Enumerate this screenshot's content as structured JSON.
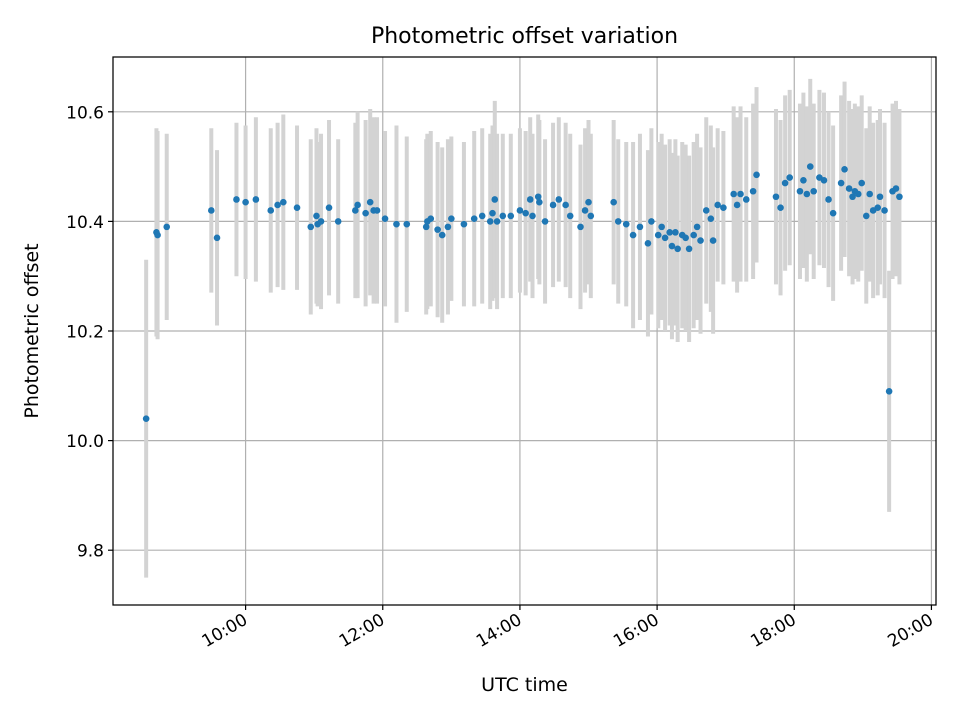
{
  "chart_data": {
    "type": "scatter",
    "title": "Photometric offset variation",
    "xlabel": "UTC time",
    "ylabel": "Photometric offset",
    "xlim": [
      "08:04",
      "20:04"
    ],
    "ylim": [
      9.7,
      10.7
    ],
    "x_ticks": [
      "10:00",
      "12:00",
      "14:00",
      "16:00",
      "18:00",
      "20:00"
    ],
    "y_ticks": [
      9.8,
      10.0,
      10.2,
      10.4,
      10.6
    ],
    "y_tick_labels": [
      "9.8",
      "10.0",
      "10.2",
      "10.4",
      "10.6"
    ],
    "grid": true,
    "colors": {
      "points": "#1f77b4",
      "error_bars": "#d3d3d3",
      "grid": "#b0b0b0"
    },
    "series": [
      {
        "x": [
          "08:33",
          "08:42",
          "08:43",
          "08:51",
          "09:30",
          "09:35",
          "09:52",
          "10:00",
          "10:09",
          "10:22",
          "10:28",
          "10:33",
          "10:45",
          "10:57",
          "11:02",
          "11:03",
          "11:06",
          "11:13",
          "11:21",
          "11:36",
          "11:38",
          "11:45",
          "11:49",
          "11:52",
          "11:55",
          "12:02",
          "12:12",
          "12:21",
          "12:38",
          "12:39",
          "12:42",
          "12:48",
          "12:52",
          "12:57",
          "13:00",
          "13:11",
          "13:20",
          "13:27",
          "13:34",
          "13:36",
          "13:38",
          "13:40",
          "13:45",
          "13:52",
          "14:00",
          "14:05",
          "14:09",
          "14:11",
          "14:16",
          "14:17",
          "14:22",
          "14:29",
          "14:34",
          "14:40",
          "14:44",
          "14:53",
          "14:57",
          "15:00",
          "15:02",
          "15:22",
          "15:26",
          "15:33",
          "15:39",
          "15:45",
          "15:52",
          "15:55",
          "16:01",
          "16:04",
          "16:07",
          "16:11",
          "16:13",
          "16:16",
          "16:18",
          "16:22",
          "16:25",
          "16:28",
          "16:32",
          "16:35",
          "16:38",
          "16:43",
          "16:47",
          "16:49",
          "16:53",
          "16:58",
          "17:07",
          "17:10",
          "17:13",
          "17:18",
          "17:24",
          "17:27",
          "17:44",
          "17:48",
          "17:52",
          "17:56",
          "18:05",
          "18:08",
          "18:11",
          "18:14",
          "18:17",
          "18:22",
          "18:26",
          "18:30",
          "18:34",
          "18:41",
          "18:44",
          "18:48",
          "18:51",
          "18:53",
          "18:56",
          "18:59",
          "19:03",
          "19:06",
          "19:09",
          "19:13",
          "19:15",
          "19:19",
          "19:23",
          "19:26",
          "19:29",
          "19:32"
        ],
        "y": [
          10.04,
          10.38,
          10.375,
          10.39,
          10.42,
          10.37,
          10.44,
          10.435,
          10.44,
          10.42,
          10.43,
          10.435,
          10.425,
          10.39,
          10.41,
          10.395,
          10.4,
          10.425,
          10.4,
          10.42,
          10.43,
          10.415,
          10.435,
          10.42,
          10.42,
          10.405,
          10.395,
          10.395,
          10.39,
          10.4,
          10.405,
          10.385,
          10.375,
          10.39,
          10.405,
          10.395,
          10.405,
          10.41,
          10.4,
          10.415,
          10.44,
          10.4,
          10.41,
          10.41,
          10.42,
          10.415,
          10.44,
          10.41,
          10.445,
          10.435,
          10.4,
          10.43,
          10.44,
          10.43,
          10.41,
          10.39,
          10.42,
          10.435,
          10.41,
          10.435,
          10.4,
          10.395,
          10.375,
          10.39,
          10.36,
          10.4,
          10.375,
          10.39,
          10.37,
          10.38,
          10.355,
          10.38,
          10.35,
          10.375,
          10.37,
          10.35,
          10.375,
          10.39,
          10.365,
          10.42,
          10.405,
          10.365,
          10.43,
          10.425,
          10.45,
          10.43,
          10.45,
          10.44,
          10.455,
          10.485,
          10.445,
          10.425,
          10.47,
          10.48,
          10.455,
          10.475,
          10.45,
          10.5,
          10.455,
          10.48,
          10.475,
          10.44,
          10.415,
          10.47,
          10.495,
          10.46,
          10.445,
          10.455,
          10.45,
          10.47,
          10.41,
          10.45,
          10.42,
          10.425,
          10.445,
          10.42,
          10.09,
          10.455,
          10.46,
          10.445
        ],
        "yerr": [
          0.29,
          0.19,
          0.19,
          0.17,
          0.15,
          0.16,
          0.14,
          0.14,
          0.15,
          0.15,
          0.15,
          0.16,
          0.15,
          0.16,
          0.16,
          0.15,
          0.16,
          0.16,
          0.15,
          0.16,
          0.17,
          0.17,
          0.17,
          0.17,
          0.17,
          0.16,
          0.18,
          0.16,
          0.16,
          0.16,
          0.16,
          0.16,
          0.16,
          0.16,
          0.15,
          0.15,
          0.16,
          0.16,
          0.16,
          0.16,
          0.18,
          0.16,
          0.15,
          0.15,
          0.15,
          0.15,
          0.15,
          0.15,
          0.15,
          0.15,
          0.15,
          0.15,
          0.15,
          0.15,
          0.15,
          0.15,
          0.15,
          0.15,
          0.15,
          0.15,
          0.15,
          0.15,
          0.17,
          0.17,
          0.17,
          0.17,
          0.17,
          0.17,
          0.17,
          0.17,
          0.17,
          0.17,
          0.17,
          0.17,
          0.17,
          0.17,
          0.17,
          0.17,
          0.17,
          0.17,
          0.17,
          0.17,
          0.14,
          0.14,
          0.16,
          0.16,
          0.16,
          0.15,
          0.16,
          0.16,
          0.16,
          0.16,
          0.16,
          0.16,
          0.16,
          0.16,
          0.16,
          0.16,
          0.16,
          0.16,
          0.16,
          0.16,
          0.16,
          0.16,
          0.16,
          0.16,
          0.16,
          0.16,
          0.16,
          0.16,
          0.16,
          0.16,
          0.16,
          0.16,
          0.16,
          0.16,
          0.22,
          0.16,
          0.16,
          0.16
        ]
      }
    ]
  }
}
